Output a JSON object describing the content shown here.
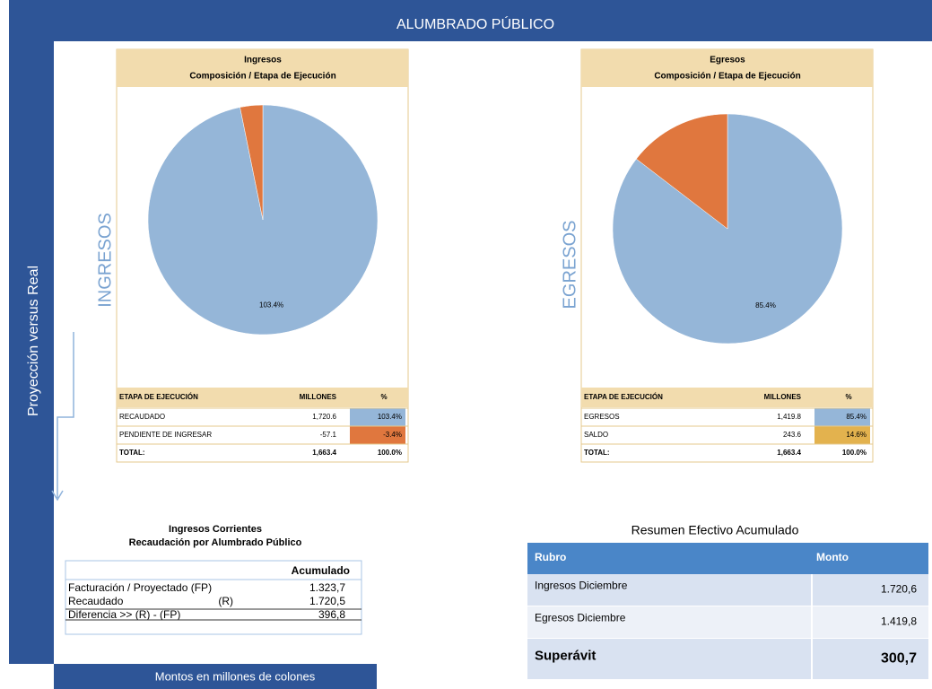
{
  "header": {
    "title": "ALUMBRADO PÚBLICO"
  },
  "side_label": "Proyección versus Real",
  "footer": "Montos en millones de colones",
  "panels": [
    {
      "title": "Ingresos",
      "subtitle": "Composición / Etapa de Ejecución",
      "vertical_label": "INGRESOS",
      "pie": {
        "values": [
          103.4,
          3.4
        ],
        "colors": [
          "#95b6d8",
          "#e0773e"
        ],
        "labels": [
          "103.4%"
        ]
      },
      "table": {
        "header": [
          "ETAPA DE EJECUCIÓN",
          "MILLONES",
          "%"
        ],
        "rows": [
          [
            "RECAUDADO",
            "1,720.6",
            "103.4%"
          ],
          [
            "PENDIENTE DE INGRESAR",
            "-57.1",
            "-3.4%"
          ],
          [
            "TOTAL:",
            "1,663.4",
            "100.0%"
          ]
        ],
        "pct_colors": [
          "#95b6d8",
          "#e0773e"
        ]
      }
    },
    {
      "title": "Egresos",
      "subtitle": "Composición / Etapa de Ejecución",
      "vertical_label": "EGRESOS",
      "pie": {
        "values": [
          85.4,
          14.6
        ],
        "colors": [
          "#95b6d8",
          "#e0773e"
        ],
        "labels": [
          "85.4%"
        ]
      },
      "table": {
        "header": [
          "ETAPA DE EJECUCIÓN",
          "MILLONES",
          "%"
        ],
        "rows": [
          [
            "EGRESOS",
            "1,419.8",
            "85.4%"
          ],
          [
            "SALDO",
            "243.6",
            "14.6%"
          ],
          [
            "TOTAL:",
            "1,663.4",
            "100.0%"
          ]
        ],
        "pct_colors": [
          "#95b6d8",
          "#e3b24e"
        ]
      }
    }
  ],
  "corrientes": {
    "title": "Ingresos Corrientes",
    "subtitle": "Recaudación por Alumbrado Público",
    "header": "Acumulado",
    "rows": [
      [
        "Facturación / Proyectado  (FP)",
        "1.323,7"
      ],
      [
        "Recaudado",
        "(R)",
        "1.720,5"
      ],
      [
        "Diferencia  >> (R) - (FP)",
        "396,8"
      ]
    ]
  },
  "resumen": {
    "title": "Resumen Efectivo Acumulado",
    "header": [
      "Rubro",
      "Monto"
    ],
    "rows": [
      [
        "Ingresos Diciembre",
        "1.720,6"
      ],
      [
        "Egresos Diciembre",
        "1.419,8"
      ],
      [
        "Superávit",
        "300,7"
      ]
    ]
  }
}
